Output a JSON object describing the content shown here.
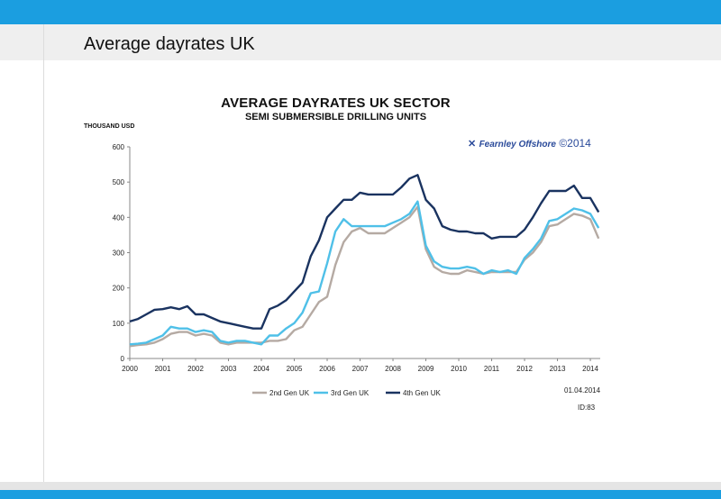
{
  "page": {
    "title": "Average dayrates UK"
  },
  "chart_data": {
    "type": "line",
    "title": "AVERAGE DAYRATES UK SECTOR",
    "subtitle": "SEMI SUBMERSIBLE DRILLING UNITS",
    "ylabel": "THOUSAND USD",
    "xlabel": "",
    "xlim": [
      2000,
      2014.3
    ],
    "ylim": [
      0,
      600
    ],
    "yticks": [
      0,
      100,
      200,
      300,
      400,
      500,
      600
    ],
    "xticks": [
      2000,
      2001,
      2002,
      2003,
      2004,
      2005,
      2006,
      2007,
      2008,
      2009,
      2010,
      2011,
      2012,
      2013,
      2014
    ],
    "grid": false,
    "legend_position": "bottom",
    "series": [
      {
        "name": "2nd Gen UK",
        "color": "#b5aaa3",
        "x": [
          2000,
          2000.25,
          2000.5,
          2000.75,
          2001,
          2001.25,
          2001.5,
          2001.75,
          2002,
          2002.25,
          2002.5,
          2002.75,
          2003,
          2003.25,
          2003.5,
          2003.75,
          2004,
          2004.25,
          2004.5,
          2004.75,
          2005,
          2005.25,
          2005.5,
          2005.75,
          2006,
          2006.25,
          2006.5,
          2006.75,
          2007,
          2007.25,
          2007.5,
          2007.75,
          2008,
          2008.25,
          2008.5,
          2008.75,
          2009,
          2009.25,
          2009.5,
          2009.75,
          2010,
          2010.25,
          2010.5,
          2010.75,
          2011,
          2011.25,
          2011.5,
          2011.75,
          2012,
          2012.25,
          2012.5,
          2012.75,
          2013,
          2013.25,
          2013.5,
          2013.75,
          2014,
          2014.25
        ],
        "values": [
          35,
          38,
          40,
          45,
          55,
          70,
          75,
          75,
          65,
          70,
          65,
          45,
          40,
          45,
          45,
          45,
          45,
          50,
          50,
          55,
          80,
          90,
          125,
          160,
          175,
          265,
          330,
          360,
          370,
          355,
          355,
          355,
          370,
          385,
          400,
          430,
          310,
          260,
          245,
          240,
          240,
          250,
          245,
          240,
          245,
          245,
          245,
          245,
          280,
          300,
          330,
          375,
          380,
          395,
          410,
          405,
          395,
          340
        ]
      },
      {
        "name": "3rd Gen UK",
        "color": "#4fc0e8",
        "x": [
          2000,
          2000.25,
          2000.5,
          2000.75,
          2001,
          2001.25,
          2001.5,
          2001.75,
          2002,
          2002.25,
          2002.5,
          2002.75,
          2003,
          2003.25,
          2003.5,
          2003.75,
          2004,
          2004.25,
          2004.5,
          2004.75,
          2005,
          2005.25,
          2005.5,
          2005.75,
          2006,
          2006.25,
          2006.5,
          2006.75,
          2007,
          2007.25,
          2007.5,
          2007.75,
          2008,
          2008.25,
          2008.5,
          2008.75,
          2009,
          2009.25,
          2009.5,
          2009.75,
          2010,
          2010.25,
          2010.5,
          2010.75,
          2011,
          2011.25,
          2011.5,
          2011.75,
          2012,
          2012.25,
          2012.5,
          2012.75,
          2013,
          2013.25,
          2013.5,
          2013.75,
          2014,
          2014.25
        ],
        "values": [
          40,
          42,
          45,
          55,
          65,
          90,
          85,
          85,
          75,
          80,
          75,
          50,
          45,
          50,
          50,
          45,
          40,
          65,
          65,
          85,
          100,
          130,
          185,
          190,
          270,
          360,
          395,
          375,
          375,
          375,
          375,
          375,
          385,
          395,
          410,
          445,
          320,
          275,
          260,
          255,
          255,
          260,
          255,
          240,
          250,
          245,
          250,
          240,
          285,
          310,
          340,
          390,
          395,
          410,
          425,
          420,
          410,
          370
        ]
      },
      {
        "name": "4th Gen UK",
        "color": "#1a3360",
        "x": [
          2000,
          2000.25,
          2000.5,
          2000.75,
          2001,
          2001.25,
          2001.5,
          2001.75,
          2002,
          2002.25,
          2002.5,
          2002.75,
          2003,
          2003.25,
          2003.5,
          2003.75,
          2004,
          2004.25,
          2004.5,
          2004.75,
          2005,
          2005.25,
          2005.5,
          2005.75,
          2006,
          2006.25,
          2006.5,
          2006.75,
          2007,
          2007.25,
          2007.5,
          2007.75,
          2008,
          2008.25,
          2008.5,
          2008.75,
          2009,
          2009.25,
          2009.5,
          2009.75,
          2010,
          2010.25,
          2010.5,
          2010.75,
          2011,
          2011.25,
          2011.5,
          2011.75,
          2012,
          2012.25,
          2012.5,
          2012.75,
          2013,
          2013.25,
          2013.5,
          2013.75,
          2014,
          2014.25
        ],
        "values": [
          105,
          112,
          125,
          138,
          140,
          145,
          140,
          148,
          125,
          125,
          115,
          105,
          100,
          95,
          90,
          85,
          85,
          140,
          150,
          165,
          190,
          215,
          290,
          335,
          400,
          425,
          450,
          450,
          470,
          465,
          465,
          465,
          465,
          485,
          510,
          520,
          450,
          425,
          375,
          365,
          360,
          360,
          355,
          355,
          340,
          345,
          345,
          345,
          365,
          400,
          440,
          475,
          475,
          475,
          490,
          455,
          455,
          415
        ]
      }
    ]
  },
  "branding": {
    "name": "Fearnley Offshore",
    "copyright": "©2014",
    "icon": "fearnley-logo-icon"
  },
  "footer": {
    "date": "01.04.2014",
    "id": "ID:83"
  }
}
